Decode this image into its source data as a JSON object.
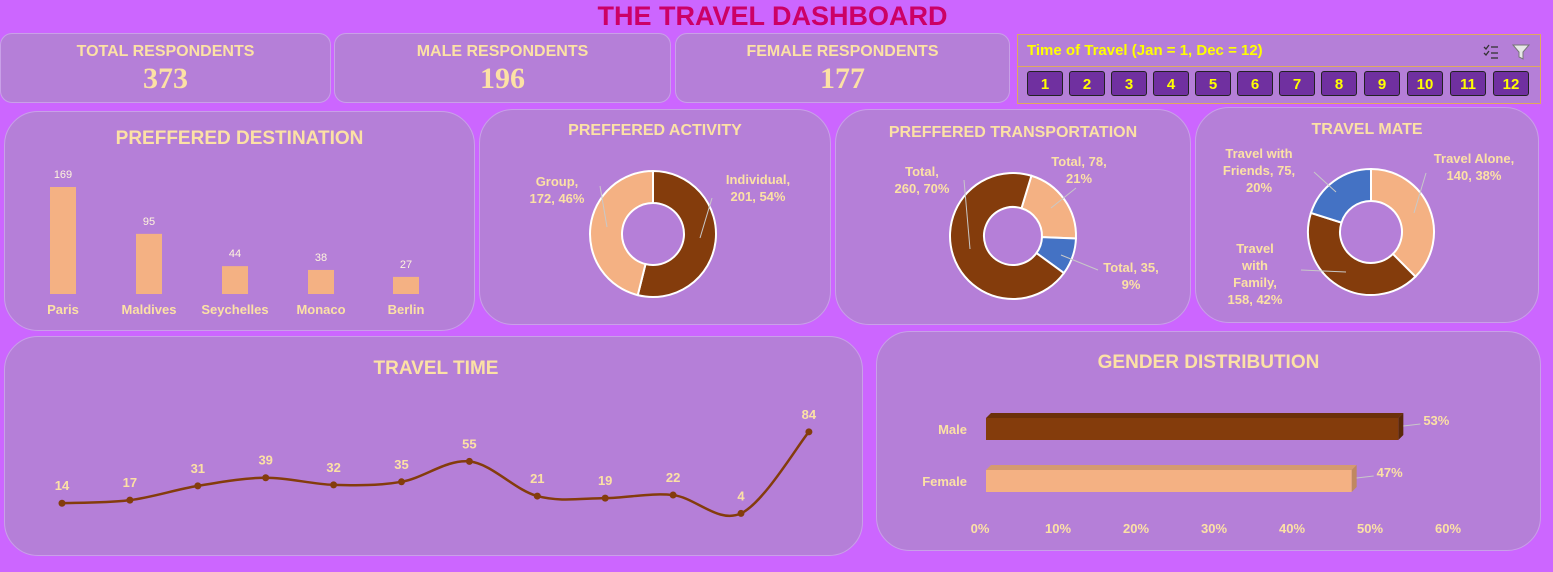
{
  "dashboard": {
    "title": "THE TRAVEL DASHBOARD"
  },
  "kpis": [
    {
      "label": "TOTAL RESPONDENTS",
      "value": "373"
    },
    {
      "label": "MALE RESPONDENTS",
      "value": "196"
    },
    {
      "label": "FEMALE RESPONDENTS",
      "value": "177"
    }
  ],
  "slicer": {
    "title": "Time of Travel (Jan = 1, Dec = 12)",
    "buttons": [
      "1",
      "2",
      "3",
      "4",
      "5",
      "6",
      "7",
      "8",
      "9",
      "10",
      "11",
      "12"
    ],
    "multi_select_icon": "multi-select-icon",
    "clear_filter_icon": "clear-filter-icon"
  },
  "colors": {
    "background": "#cc66ff",
    "panel": "#b57fd8",
    "title": "#cc0066",
    "label": "#fce1a5",
    "dark_brown": "#843c0c",
    "peach": "#f4b183",
    "blue": "#4472c4",
    "slicer_text": "#ffff00",
    "slicer_button": "#7030a0"
  },
  "chart_data": [
    {
      "type": "bar",
      "title": "PREFFERED DESTINATION",
      "categories": [
        "Paris",
        "Maldives",
        "Seychelles",
        "Monaco",
        "Berlin"
      ],
      "values": [
        169,
        95,
        44,
        38,
        27
      ],
      "data_labels": [
        "169",
        "95",
        "44",
        "38",
        "27"
      ],
      "ylim": [
        0,
        169
      ]
    },
    {
      "type": "pie",
      "title": "PREFFERED ACTIVITY",
      "categories": [
        "Individual",
        "Group"
      ],
      "values": [
        201,
        172
      ],
      "data_labels": [
        "Individual, 201, 54%",
        "Group, 172, 46%"
      ]
    },
    {
      "type": "pie",
      "title": "PREFFERED TRANSPORTATION",
      "categories": [
        "Total",
        "Total",
        "Total"
      ],
      "values": [
        78,
        35,
        260
      ],
      "data_labels": [
        "Total, 78, 21%",
        "Total, 35, 9%",
        "Total, 260, 70%"
      ]
    },
    {
      "type": "pie",
      "title": "TRAVEL MATE",
      "categories": [
        "Travel Alone",
        "Travel with Family",
        "Travel with Friends"
      ],
      "values": [
        140,
        158,
        75
      ],
      "data_labels": [
        "Travel Alone, 140, 38%",
        "Travel with Family, 158, 42%",
        "Travel with Friends, 75, 20%"
      ]
    },
    {
      "type": "line",
      "title": "TRAVEL TIME",
      "x": [
        1,
        2,
        3,
        4,
        5,
        6,
        7,
        8,
        9,
        10,
        11,
        12
      ],
      "values": [
        14,
        17,
        31,
        39,
        32,
        35,
        55,
        21,
        19,
        22,
        4,
        84
      ],
      "data_labels": [
        "14",
        "17",
        "31",
        "39",
        "32",
        "35",
        "55",
        "21",
        "19",
        "22",
        "4",
        "84"
      ]
    },
    {
      "type": "bar",
      "title": "GENDER DISTRIBUTION",
      "categories": [
        "Male",
        "Female"
      ],
      "values": [
        53,
        47
      ],
      "data_labels": [
        "53%",
        "47%"
      ],
      "xlim": [
        0,
        60
      ],
      "x_ticks": [
        "0%",
        "10%",
        "20%",
        "30%",
        "40%",
        "50%",
        "60%"
      ]
    }
  ]
}
